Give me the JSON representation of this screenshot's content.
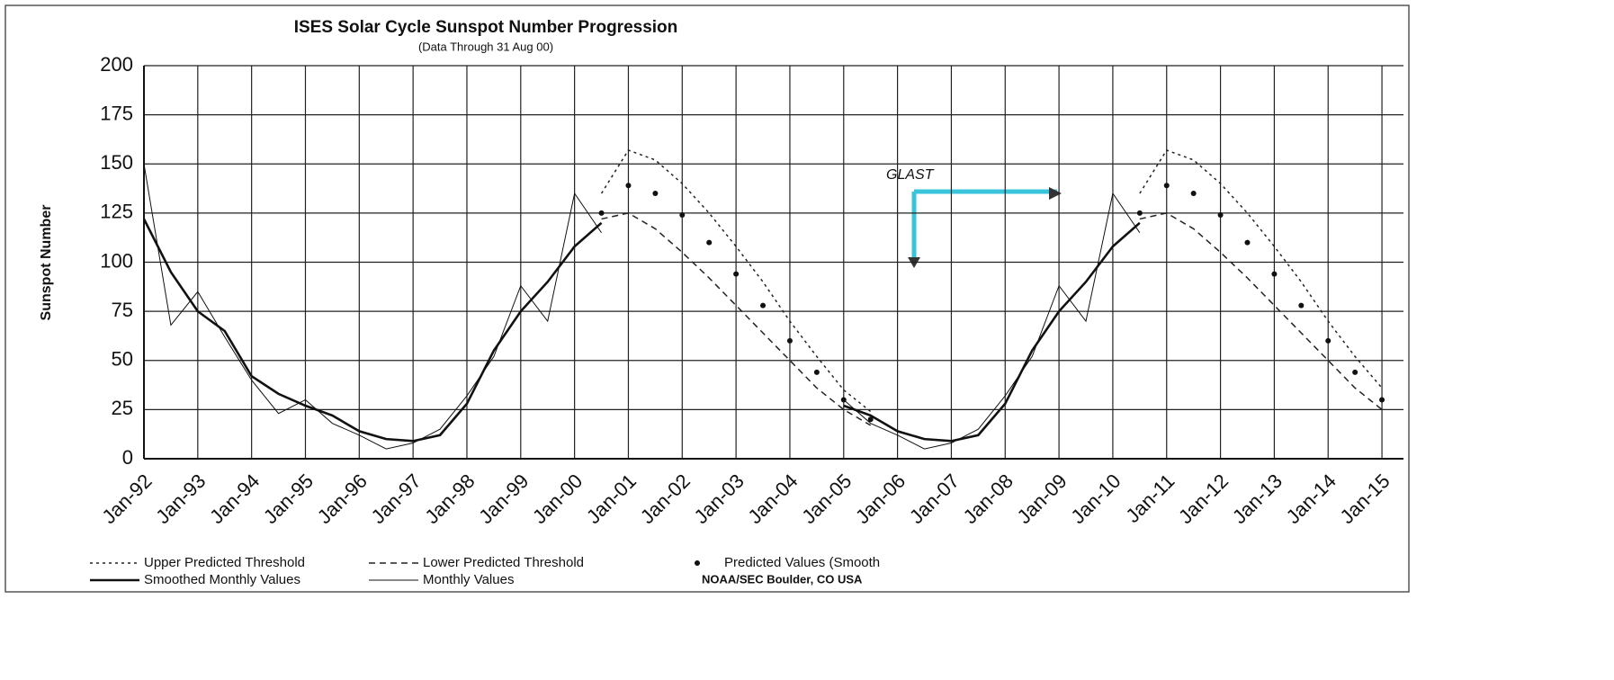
{
  "chart_data": {
    "type": "line",
    "title": "ISES Solar Cycle Sunspot Number Progression",
    "subtitle": "(Data Through 31 Aug 00)",
    "y_label": "Sunspot Number",
    "annotations": [
      "GLAST",
      "NOAA/SEC Boulder, CO USA"
    ],
    "x": [
      1992,
      1992.5,
      1993,
      1993.5,
      1994,
      1994.5,
      1995,
      1995.5,
      1996,
      1996.5,
      1997,
      1997.5,
      1998,
      1998.5,
      1999,
      1999.5,
      2000,
      2000.5,
      2001,
      2001.5,
      2002,
      2002.5,
      2003,
      2003.5,
      2004,
      2004.5,
      2005,
      2005.5,
      2006,
      2006.5,
      2007,
      2007.5,
      2008,
      2008.5,
      2009,
      2009.5,
      2010,
      2010.5,
      2011,
      2011.5,
      2012,
      2012.5,
      2013,
      2013.5,
      2014,
      2014.5,
      2015
    ],
    "xlim": [
      1992,
      2015.4
    ],
    "xticks": [
      {
        "value": 1992,
        "label": "Jan-92"
      },
      {
        "value": 1993,
        "label": "Jan-93"
      },
      {
        "value": 1994,
        "label": "Jan-94"
      },
      {
        "value": 1995,
        "label": "Jan-95"
      },
      {
        "value": 1996,
        "label": "Jan-96"
      },
      {
        "value": 1997,
        "label": "Jan-97"
      },
      {
        "value": 1998,
        "label": "Jan-98"
      },
      {
        "value": 1999,
        "label": "Jan-99"
      },
      {
        "value": 2000,
        "label": "Jan-00"
      },
      {
        "value": 2001,
        "label": "Jan-01"
      },
      {
        "value": 2002,
        "label": "Jan-02"
      },
      {
        "value": 2003,
        "label": "Jan-03"
      },
      {
        "value": 2004,
        "label": "Jan-04"
      },
      {
        "value": 2005,
        "label": "Jan-05"
      },
      {
        "value": 2006,
        "label": "Jan-06"
      },
      {
        "value": 2007,
        "label": "Jan-07"
      },
      {
        "value": 2008,
        "label": "Jan-08"
      },
      {
        "value": 2009,
        "label": "Jan-09"
      },
      {
        "value": 2010,
        "label": "Jan-10"
      },
      {
        "value": 2011,
        "label": "Jan-11"
      },
      {
        "value": 2012,
        "label": "Jan-12"
      },
      {
        "value": 2013,
        "label": "Jan-13"
      },
      {
        "value": 2014,
        "label": "Jan-14"
      },
      {
        "value": 2015,
        "label": "Jan-15"
      }
    ],
    "ylim": [
      0,
      200
    ],
    "yticks": [
      0,
      25,
      50,
      75,
      100,
      125,
      150,
      175,
      200
    ],
    "grid": true,
    "series": [
      {
        "name": "Upper Predicted Threshold",
        "color": "#222222",
        "style": "dotted",
        "values": [
          null,
          null,
          null,
          null,
          null,
          null,
          null,
          null,
          null,
          null,
          null,
          null,
          null,
          null,
          null,
          null,
          null,
          135,
          157,
          152,
          140,
          125,
          108,
          90,
          70,
          52,
          35,
          24,
          null,
          null,
          null,
          null,
          null,
          null,
          null,
          null,
          null,
          135,
          157,
          152,
          140,
          125,
          108,
          90,
          70,
          52,
          36
        ]
      },
      {
        "name": "Lower Predicted Threshold",
        "color": "#222222",
        "style": "dashed",
        "values": [
          null,
          null,
          null,
          null,
          null,
          null,
          null,
          null,
          null,
          null,
          null,
          null,
          null,
          null,
          null,
          null,
          null,
          122,
          125,
          117,
          105,
          92,
          78,
          64,
          50,
          36,
          25,
          17,
          null,
          null,
          null,
          null,
          null,
          null,
          null,
          null,
          null,
          122,
          125,
          117,
          105,
          92,
          78,
          64,
          50,
          36,
          25
        ]
      },
      {
        "name": "Predicted Values (Smooth",
        "color": "#111111",
        "style": "markers",
        "values": [
          null,
          null,
          null,
          null,
          null,
          null,
          null,
          null,
          null,
          null,
          null,
          null,
          null,
          null,
          null,
          null,
          null,
          125,
          139,
          135,
          124,
          110,
          94,
          78,
          60,
          44,
          30,
          20,
          null,
          null,
          null,
          null,
          null,
          null,
          null,
          null,
          null,
          125,
          139,
          135,
          124,
          110,
          94,
          78,
          60,
          44,
          30
        ]
      },
      {
        "name": "Smoothed Monthly Values",
        "color": "#111111",
        "style": "solid",
        "values": [
          122,
          95,
          75,
          65,
          42,
          33,
          27,
          22,
          14,
          10,
          9,
          12,
          28,
          55,
          75,
          90,
          108,
          120,
          null,
          null,
          null,
          null,
          null,
          null,
          null,
          null,
          27,
          22,
          14,
          10,
          9,
          12,
          28,
          55,
          75,
          90,
          108,
          120,
          null,
          null,
          null,
          null,
          null,
          null,
          null,
          null,
          null
        ]
      },
      {
        "name": "Monthly Values",
        "color": "#111111",
        "style": "thin",
        "values": [
          150,
          68,
          85,
          62,
          40,
          23,
          30,
          18,
          12,
          5,
          8,
          15,
          32,
          52,
          88,
          70,
          135,
          115,
          null,
          null,
          null,
          null,
          null,
          null,
          null,
          null,
          30,
          18,
          12,
          5,
          8,
          15,
          32,
          52,
          88,
          70,
          135,
          115,
          null,
          null,
          null,
          null,
          null,
          null,
          null,
          null,
          null
        ]
      }
    ]
  }
}
